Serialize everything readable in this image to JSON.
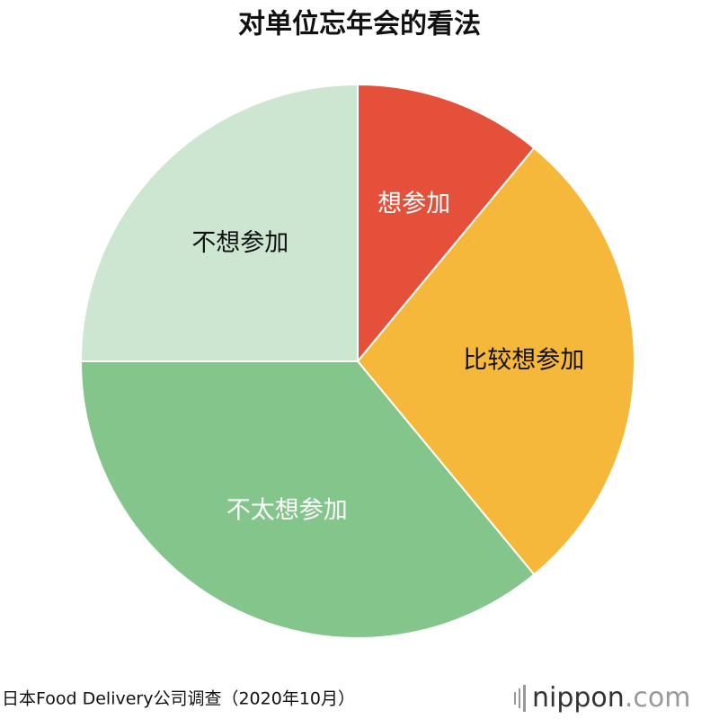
{
  "chart_data": {
    "type": "pie",
    "title": "对单位忘年会的看法",
    "categories": [
      "想参加",
      "比较想参加",
      "不太想参加",
      "不想参加"
    ],
    "values": [
      11,
      28,
      36,
      25
    ],
    "colors": [
      "#e4503a",
      "#f5b83a",
      "#83c58a",
      "#cde6d2"
    ],
    "label_colors": [
      "#ffffff",
      "#111111",
      "#ffffff",
      "#111111"
    ],
    "source": "日本Food Delivery公司调查（2020年10月）",
    "logo_main": "nippon",
    "logo_suffix": ".com"
  }
}
